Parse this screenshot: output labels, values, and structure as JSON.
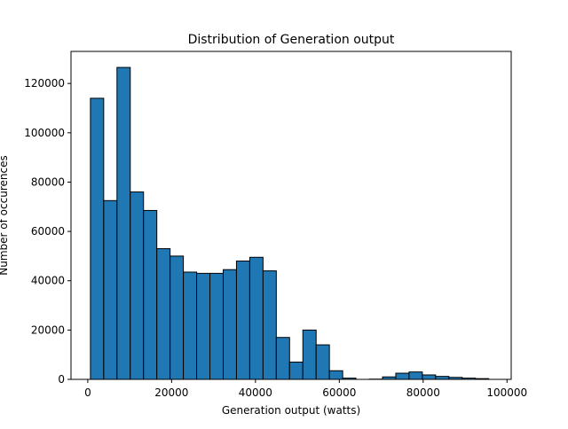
{
  "chart_data": {
    "type": "bar",
    "title": "Distribution of Generation output",
    "xlabel": "Generation output (watts)",
    "ylabel": "Number of occurences",
    "xlim": [
      -4000,
      101000
    ],
    "ylim": [
      0,
      133000
    ],
    "xticks": [
      0,
      20000,
      40000,
      60000,
      80000,
      100000
    ],
    "yticks": [
      0,
      20000,
      40000,
      60000,
      80000,
      100000,
      120000
    ],
    "bin_width": 3167,
    "bins": [
      {
        "x0": 633,
        "value": 114000
      },
      {
        "x0": 3800,
        "value": 72500
      },
      {
        "x0": 6967,
        "value": 126500
      },
      {
        "x0": 10134,
        "value": 76000
      },
      {
        "x0": 13301,
        "value": 68500
      },
      {
        "x0": 16468,
        "value": 53000
      },
      {
        "x0": 19635,
        "value": 50000
      },
      {
        "x0": 22802,
        "value": 43500
      },
      {
        "x0": 25969,
        "value": 43000
      },
      {
        "x0": 29136,
        "value": 43000
      },
      {
        "x0": 32303,
        "value": 44500
      },
      {
        "x0": 35470,
        "value": 48000
      },
      {
        "x0": 38637,
        "value": 49500
      },
      {
        "x0": 41804,
        "value": 44000
      },
      {
        "x0": 44971,
        "value": 17000
      },
      {
        "x0": 48138,
        "value": 7000
      },
      {
        "x0": 51305,
        "value": 20000
      },
      {
        "x0": 54472,
        "value": 14000
      },
      {
        "x0": 57639,
        "value": 3500
      },
      {
        "x0": 60806,
        "value": 500
      },
      {
        "x0": 63973,
        "value": 0
      },
      {
        "x0": 67140,
        "value": 100
      },
      {
        "x0": 70307,
        "value": 1000
      },
      {
        "x0": 73474,
        "value": 2500
      },
      {
        "x0": 76641,
        "value": 3000
      },
      {
        "x0": 79808,
        "value": 1800
      },
      {
        "x0": 82975,
        "value": 1200
      },
      {
        "x0": 86142,
        "value": 800
      },
      {
        "x0": 89309,
        "value": 500
      },
      {
        "x0": 92476,
        "value": 300
      }
    ],
    "bar_color": "#1f77b4",
    "edge_color": "#000000",
    "grid": false,
    "legend": "none"
  }
}
